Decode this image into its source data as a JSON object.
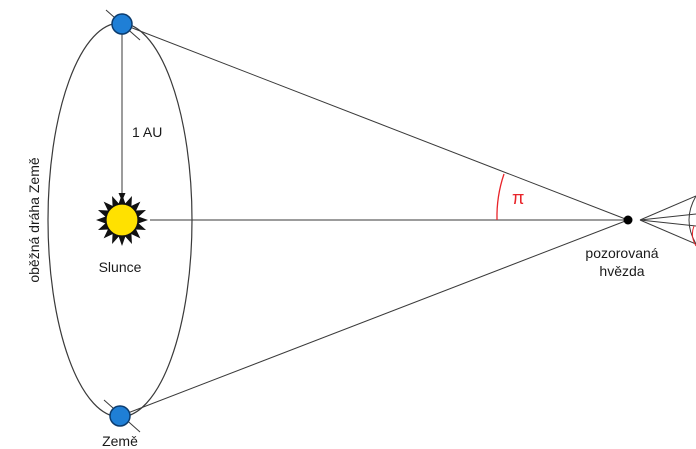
{
  "labels": {
    "orbit": "oběžná dráha Země",
    "distance": "1 AU",
    "sun": "Slunce",
    "earth": "Země",
    "star_line1": "pozorovaná",
    "star_line2": "hvězda",
    "parallax": "π"
  },
  "colors": {
    "line": "#3a3a3a",
    "earth_fill": "#1f7fd6",
    "earth_stroke": "#0c3c6e",
    "sun_fill": "#ffe100",
    "sun_stroke": "#111111",
    "angle_arc": "#e8242a",
    "star": "#000000"
  }
}
